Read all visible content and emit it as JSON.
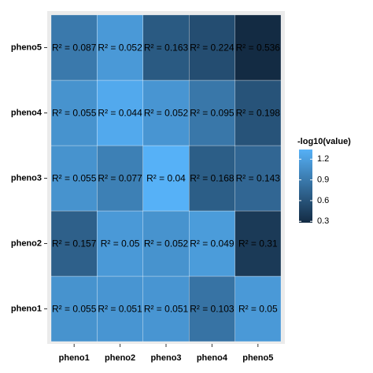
{
  "chart_data": {
    "type": "heatmap",
    "x": [
      "pheno1",
      "pheno2",
      "pheno3",
      "pheno4",
      "pheno5"
    ],
    "y": [
      "pheno1",
      "pheno2",
      "pheno3",
      "pheno4",
      "pheno5"
    ],
    "values": [
      [
        1.1,
        1.12,
        1.12,
        0.85,
        1.15
      ],
      [
        0.7,
        1.15,
        1.1,
        1.17,
        0.4
      ],
      [
        1.1,
        0.95,
        1.34,
        0.68,
        0.75
      ],
      [
        1.1,
        1.28,
        1.12,
        0.88,
        0.6
      ],
      [
        0.9,
        1.15,
        0.65,
        0.55,
        0.28
      ]
    ],
    "cell_labels": [
      [
        "R² = 0.055",
        "R² = 0.051",
        "R² = 0.051",
        "R² = 0.103",
        "R² = 0.05"
      ],
      [
        "R² = 0.157",
        "R² = 0.05",
        "R² = 0.052",
        "R² = 0.049",
        "R² = 0.31"
      ],
      [
        "R² = 0.055",
        "R² = 0.077",
        "R² = 0.04",
        "R² = 0.168",
        "R² = 0.143"
      ],
      [
        "R² = 0.055",
        "R² = 0.044",
        "R² = 0.052",
        "R² = 0.095",
        "R² = 0.198"
      ],
      [
        "R² = 0.087",
        "R² = 0.052",
        "R² = 0.163",
        "R² = 0.224",
        "R² = 0.536"
      ]
    ],
    "legend_title": "-log10(value)",
    "clim": [
      0.28,
      1.34
    ],
    "cticks": [
      0.3,
      0.6,
      0.9,
      1.2
    ],
    "colors": [
      "#132B43",
      "#56B1F7"
    ]
  }
}
